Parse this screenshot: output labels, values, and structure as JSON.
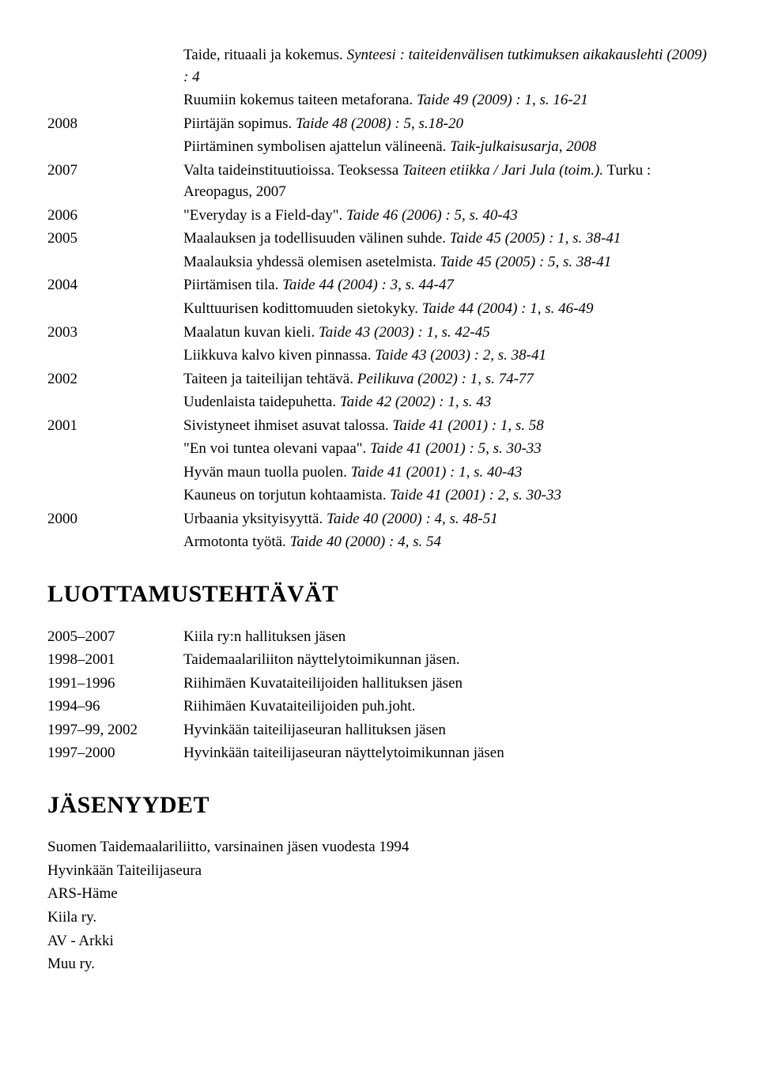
{
  "pubs": [
    {
      "year": "",
      "lines": [
        {
          "segments": [
            {
              "t": "Taide, rituaali ja kokemus. "
            },
            {
              "t": "Synteesi : taiteidenvälisen tutkimuksen aikakauslehti (2009) : 4",
              "i": true
            }
          ]
        },
        {
          "segments": [
            {
              "t": "Ruumiin kokemus taiteen metaforana. "
            },
            {
              "t": "Taide 49 (2009) : 1, s. 16-21",
              "i": true
            }
          ]
        }
      ]
    },
    {
      "year": "2008",
      "lines": [
        {
          "segments": [
            {
              "t": "Piirtäjän sopimus. "
            },
            {
              "t": "Taide 48 (2008) : 5, s.18-20",
              "i": true
            }
          ]
        },
        {
          "segments": [
            {
              "t": "Piirtäminen symbolisen ajattelun välineenä. "
            },
            {
              "t": "Taik-julkaisusarja, 2008",
              "i": true
            }
          ]
        }
      ]
    },
    {
      "year": "2007",
      "lines": [
        {
          "segments": [
            {
              "t": "Valta taideinstituutioissa. Teoksessa "
            },
            {
              "t": "Taiteen etiikka / Jari Jula (toim.).",
              "i": true
            },
            {
              "t": " Turku : Areopagus, 2007"
            }
          ]
        }
      ]
    },
    {
      "year": "2006",
      "lines": [
        {
          "segments": [
            {
              "t": "\"Everyday is a Field-day\". "
            },
            {
              "t": "Taide 46 (2006) : 5, s. 40-43",
              "i": true
            }
          ]
        }
      ]
    },
    {
      "year": "2005",
      "lines": [
        {
          "segments": [
            {
              "t": "Maalauksen ja todellisuuden välinen suhde. "
            },
            {
              "t": "Taide 45 (2005) : 1, s. 38-41",
              "i": true
            }
          ]
        },
        {
          "segments": [
            {
              "t": "Maalauksia yhdessä olemisen asetelmista. "
            },
            {
              "t": "Taide 45 (2005) : 5, s. 38-41",
              "i": true
            }
          ]
        }
      ]
    },
    {
      "year": "2004",
      "lines": [
        {
          "segments": [
            {
              "t": "Piirtämisen tila. "
            },
            {
              "t": "Taide 44 (2004) : 3, s. 44-47",
              "i": true
            }
          ]
        },
        {
          "segments": [
            {
              "t": "Kulttuurisen kodittomuuden sietokyky. "
            },
            {
              "t": "Taide 44 (2004) : 1, s. 46-49",
              "i": true
            }
          ]
        }
      ]
    },
    {
      "year": "2003",
      "lines": [
        {
          "segments": [
            {
              "t": "Maalatun kuvan kieli. "
            },
            {
              "t": "Taide 43 (2003) : 1, s. 42-45",
              "i": true
            }
          ]
        },
        {
          "segments": [
            {
              "t": "Liikkuva kalvo kiven pinnassa. "
            },
            {
              "t": "Taide 43 (2003) : 2, s. 38-41",
              "i": true
            }
          ]
        }
      ]
    },
    {
      "year": "2002",
      "lines": [
        {
          "segments": [
            {
              "t": "Taiteen ja taiteilijan tehtävä. "
            },
            {
              "t": "Peilikuva (2002) : 1, s. 74-77",
              "i": true
            }
          ]
        },
        {
          "segments": [
            {
              "t": "Uudenlaista taidepuhetta. "
            },
            {
              "t": "Taide 42 (2002) : 1, s. 43",
              "i": true
            }
          ]
        }
      ]
    },
    {
      "year": "2001",
      "lines": [
        {
          "segments": [
            {
              "t": "Sivistyneet ihmiset asuvat talossa. "
            },
            {
              "t": "Taide 41 (2001) : 1, s. 58",
              "i": true
            }
          ]
        },
        {
          "segments": [
            {
              "t": "\"En voi tuntea olevani vapaa\". "
            },
            {
              "t": "Taide 41 (2001) : 5, s. 30-33",
              "i": true
            }
          ]
        },
        {
          "segments": [
            {
              "t": "Hyvän maun tuolla puolen. "
            },
            {
              "t": "Taide 41 (2001) : 1, s. 40-43",
              "i": true
            }
          ]
        },
        {
          "segments": [
            {
              "t": "Kauneus on torjutun kohtaamista. "
            },
            {
              "t": "Taide 41 (2001) : 2, s. 30-33",
              "i": true
            }
          ]
        }
      ]
    },
    {
      "year": "2000",
      "lines": [
        {
          "segments": [
            {
              "t": "Urbaania yksityisyyttä. "
            },
            {
              "t": "Taide 40 (2000) : 4, s. 48-51",
              "i": true
            }
          ]
        },
        {
          "segments": [
            {
              "t": "Armotonta työtä. "
            },
            {
              "t": "Taide 40 (2000) : 4, s. 54",
              "i": true
            }
          ]
        }
      ]
    }
  ],
  "headings": {
    "trust": "LUOTTAMUSTEHTÄVÄT",
    "memberships": "JÄSENYYDET"
  },
  "trust": [
    {
      "year": "2005–2007",
      "text": "Kiila ry:n hallituksen jäsen"
    },
    {
      "year": "1998–2001",
      "text": "Taidemaalariliiton näyttelytoimikunnan jäsen."
    },
    {
      "year": "1991–1996",
      "text": "Riihimäen Kuvataiteilijoiden hallituksen jäsen"
    },
    {
      "year": "1994–96",
      "text": "Riihimäen Kuvataiteilijoiden puh.joht."
    },
    {
      "year": "1997–99, 2002",
      "text": "Hyvinkään taiteilijaseuran hallituksen jäsen"
    },
    {
      "year": "1997–2000",
      "text": "Hyvinkään taiteilijaseuran näyttelytoimikunnan jäsen"
    }
  ],
  "memberships": [
    "Suomen Taidemaalariliitto, varsinainen jäsen vuodesta 1994",
    "Hyvinkään Taiteilijaseura",
    "ARS-Häme",
    "Kiila ry.",
    "AV - Arkki",
    "Muu ry."
  ]
}
